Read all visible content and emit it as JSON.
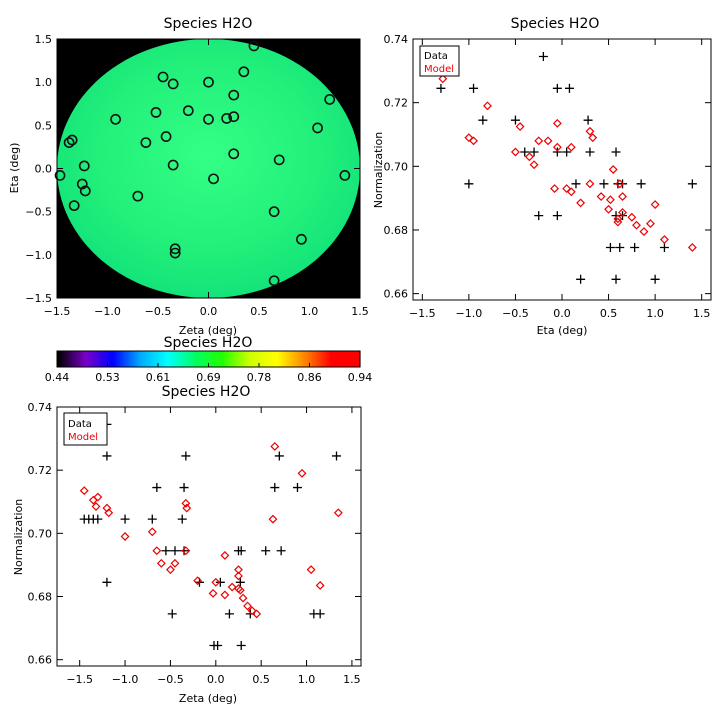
{
  "chart_data": [
    {
      "type": "scatter",
      "title": "Species H2O",
      "xlabel": "Zeta (deg)",
      "ylabel": "Eta (deg)",
      "xlim": [
        -1.5,
        1.5
      ],
      "ylim": [
        -1.5,
        1.5
      ],
      "xticks": [
        -1.5,
        -1.0,
        -0.5,
        0.0,
        0.5,
        1.0,
        1.5
      ],
      "yticks": [
        -1.5,
        -1.0,
        -0.5,
        0.0,
        0.5,
        1.0,
        1.5
      ],
      "tick_labels_x": [
        "−1.5",
        "−1.0",
        "−0.5",
        "0.0",
        "0.5",
        "1.0",
        "1.5"
      ],
      "tick_labels_y": [
        "−1.5",
        "−1.0",
        "−0.5",
        "0.0",
        "0.5",
        "1.0",
        "1.5"
      ],
      "background": "#000000",
      "field_fill": "#24f07e",
      "field_radius": 1.5,
      "points": [
        [
          0.45,
          1.42
        ],
        [
          -0.45,
          1.06
        ],
        [
          0.0,
          1.0
        ],
        [
          0.35,
          1.12
        ],
        [
          -0.35,
          0.98
        ],
        [
          0.25,
          0.85
        ],
        [
          1.2,
          0.8
        ],
        [
          -0.2,
          0.67
        ],
        [
          -0.52,
          0.65
        ],
        [
          -0.92,
          0.57
        ],
        [
          0.0,
          0.57
        ],
        [
          0.18,
          0.58
        ],
        [
          0.25,
          0.6
        ],
        [
          1.08,
          0.47
        ],
        [
          -1.35,
          0.33
        ],
        [
          -1.38,
          0.3
        ],
        [
          -0.42,
          0.37
        ],
        [
          -0.62,
          0.3
        ],
        [
          0.25,
          0.17
        ],
        [
          0.7,
          0.1
        ],
        [
          -0.35,
          0.04
        ],
        [
          -1.23,
          0.03
        ],
        [
          -1.47,
          -0.08
        ],
        [
          1.35,
          -0.08
        ],
        [
          0.05,
          -0.12
        ],
        [
          -1.25,
          -0.18
        ],
        [
          -1.22,
          -0.26
        ],
        [
          -0.7,
          -0.32
        ],
        [
          -1.33,
          -0.43
        ],
        [
          0.65,
          -0.5
        ],
        [
          0.92,
          -0.82
        ],
        [
          -0.33,
          -0.93
        ],
        [
          -0.33,
          -0.98
        ],
        [
          0.65,
          -1.3
        ]
      ],
      "colorbar": {
        "title": "Species H2O",
        "range": [
          0.44,
          0.94
        ],
        "tick_labels": [
          "0.44",
          "0.53",
          "0.61",
          "0.69",
          "0.78",
          "0.86",
          "0.94"
        ],
        "colors": [
          "#000000",
          "#7a00c8",
          "#0000ff",
          "#00aaff",
          "#00ffff",
          "#00ff66",
          "#22ff00",
          "#ccff00",
          "#ffff00",
          "#ff8800",
          "#ff0000",
          "#ff0000"
        ]
      }
    },
    {
      "type": "scatter",
      "title": "Species H2O",
      "xlabel": "Eta (deg)",
      "ylabel": "Normalization",
      "xlim": [
        -1.6,
        1.6
      ],
      "ylim": [
        0.658,
        0.74
      ],
      "xticks": [
        -1.5,
        -1.0,
        -0.5,
        0.0,
        0.5,
        1.0,
        1.5
      ],
      "yticks": [
        0.66,
        0.68,
        0.7,
        0.72,
        0.74
      ],
      "tick_labels_x": [
        "−1.5",
        "−1.0",
        "−0.5",
        "0.0",
        "0.5",
        "1.0",
        "1.5"
      ],
      "tick_labels_y": [
        "0.66",
        "0.68",
        "0.70",
        "0.72",
        "0.74"
      ],
      "legend": [
        "Data",
        "Model"
      ],
      "legend_colors": [
        "#000000",
        "#ee0000"
      ],
      "series": [
        {
          "name": "Data",
          "marker": "plus",
          "points": [
            [
              -1.3,
              0.7245
            ],
            [
              -0.95,
              0.7245
            ],
            [
              -0.85,
              0.7145
            ],
            [
              -1.0,
              0.6945
            ],
            [
              -0.2,
              0.7345
            ],
            [
              -0.05,
              0.7245
            ],
            [
              0.08,
              0.7245
            ],
            [
              -0.5,
              0.7145
            ],
            [
              0.28,
              0.7145
            ],
            [
              -0.4,
              0.7045
            ],
            [
              -0.3,
              0.7045
            ],
            [
              0.05,
              0.7045
            ],
            [
              -0.05,
              0.7045
            ],
            [
              0.3,
              0.7045
            ],
            [
              0.58,
              0.7045
            ],
            [
              -0.25,
              0.6845
            ],
            [
              -0.05,
              0.6845
            ],
            [
              0.15,
              0.6945
            ],
            [
              0.45,
              0.6945
            ],
            [
              0.6,
              0.6945
            ],
            [
              0.65,
              0.6945
            ],
            [
              0.85,
              0.6945
            ],
            [
              1.4,
              0.6945
            ],
            [
              0.58,
              0.6845
            ],
            [
              0.65,
              0.6845
            ],
            [
              0.52,
              0.6745
            ],
            [
              0.62,
              0.6745
            ],
            [
              0.78,
              0.6745
            ],
            [
              1.1,
              0.6745
            ],
            [
              0.2,
              0.6645
            ],
            [
              0.58,
              0.6645
            ],
            [
              1.0,
              0.6645
            ]
          ]
        },
        {
          "name": "Model",
          "marker": "diamond",
          "points": [
            [
              -1.28,
              0.7275
            ],
            [
              -0.8,
              0.719
            ],
            [
              -1.0,
              0.709
            ],
            [
              -0.95,
              0.708
            ],
            [
              -0.45,
              0.7125
            ],
            [
              -0.05,
              0.7135
            ],
            [
              -0.25,
              0.708
            ],
            [
              -0.15,
              0.708
            ],
            [
              -0.05,
              0.706
            ],
            [
              0.1,
              0.706
            ],
            [
              0.3,
              0.711
            ],
            [
              0.33,
              0.709
            ],
            [
              -0.5,
              0.7045
            ],
            [
              -0.35,
              0.703
            ],
            [
              -0.3,
              0.7005
            ],
            [
              0.55,
              0.699
            ],
            [
              -0.08,
              0.693
            ],
            [
              0.05,
              0.693
            ],
            [
              0.1,
              0.692
            ],
            [
              0.3,
              0.6945
            ],
            [
              0.62,
              0.6945
            ],
            [
              0.42,
              0.6905
            ],
            [
              0.52,
              0.6895
            ],
            [
              0.65,
              0.6905
            ],
            [
              0.2,
              0.6885
            ],
            [
              0.5,
              0.6865
            ],
            [
              0.6,
              0.6835
            ],
            [
              0.6,
              0.6825
            ],
            [
              0.65,
              0.6855
            ],
            [
              0.75,
              0.684
            ],
            [
              0.8,
              0.6815
            ],
            [
              0.95,
              0.682
            ],
            [
              1.0,
              0.688
            ],
            [
              0.88,
              0.6795
            ],
            [
              1.1,
              0.677
            ],
            [
              1.4,
              0.6745
            ]
          ]
        }
      ]
    },
    {
      "type": "scatter",
      "title": "Species H2O",
      "xlabel": "Zeta (deg)",
      "ylabel": "Normalization",
      "xlim": [
        -1.75,
        1.6
      ],
      "ylim": [
        0.658,
        0.74
      ],
      "xticks": [
        -1.5,
        -1.0,
        -0.5,
        0.0,
        0.5,
        1.0,
        1.5
      ],
      "yticks": [
        0.66,
        0.68,
        0.7,
        0.72,
        0.74
      ],
      "tick_labels_x": [
        "−1.5",
        "−1.0",
        "−0.5",
        "0.0",
        "0.5",
        "1.0",
        "1.5"
      ],
      "tick_labels_y": [
        "0.66",
        "0.68",
        "0.70",
        "0.72",
        "0.74"
      ],
      "legend": [
        "Data",
        "Model"
      ],
      "legend_colors": [
        "#000000",
        "#ee0000"
      ],
      "series": [
        {
          "name": "Data",
          "marker": "plus",
          "points": [
            [
              -1.2,
              0.7345
            ],
            [
              -1.2,
              0.7245
            ],
            [
              -0.33,
              0.7245
            ],
            [
              0.7,
              0.7245
            ],
            [
              1.33,
              0.7245
            ],
            [
              -0.65,
              0.7145
            ],
            [
              -0.35,
              0.7145
            ],
            [
              0.65,
              0.7145
            ],
            [
              0.9,
              0.7145
            ],
            [
              -1.45,
              0.7045
            ],
            [
              -1.4,
              0.7045
            ],
            [
              -1.35,
              0.7045
            ],
            [
              -1.3,
              0.7045
            ],
            [
              -1.0,
              0.7045
            ],
            [
              -0.7,
              0.7045
            ],
            [
              -0.37,
              0.7045
            ],
            [
              -0.55,
              0.6945
            ],
            [
              -0.45,
              0.6945
            ],
            [
              -0.35,
              0.6945
            ],
            [
              0.25,
              0.6945
            ],
            [
              0.28,
              0.6945
            ],
            [
              0.55,
              0.6945
            ],
            [
              0.72,
              0.6945
            ],
            [
              -1.2,
              0.6845
            ],
            [
              -0.18,
              0.6845
            ],
            [
              0.05,
              0.6845
            ],
            [
              0.27,
              0.6845
            ],
            [
              -0.48,
              0.6745
            ],
            [
              0.15,
              0.6745
            ],
            [
              0.38,
              0.6745
            ],
            [
              1.08,
              0.6745
            ],
            [
              1.15,
              0.6745
            ],
            [
              -0.02,
              0.6645
            ],
            [
              0.02,
              0.6645
            ],
            [
              0.28,
              0.6645
            ]
          ]
        },
        {
          "name": "Model",
          "marker": "diamond",
          "points": [
            [
              0.65,
              0.7275
            ],
            [
              0.95,
              0.719
            ],
            [
              -1.45,
              0.7135
            ],
            [
              -1.35,
              0.7105
            ],
            [
              -1.3,
              0.7115
            ],
            [
              -1.32,
              0.7085
            ],
            [
              -1.2,
              0.708
            ],
            [
              -1.18,
              0.7065
            ],
            [
              -0.33,
              0.7095
            ],
            [
              -0.32,
              0.708
            ],
            [
              0.63,
              0.7045
            ],
            [
              1.35,
              0.7065
            ],
            [
              -1.0,
              0.699
            ],
            [
              -0.7,
              0.7005
            ],
            [
              -0.65,
              0.6945
            ],
            [
              -0.33,
              0.6945
            ],
            [
              0.1,
              0.693
            ],
            [
              -0.6,
              0.6905
            ],
            [
              -0.5,
              0.6885
            ],
            [
              -0.45,
              0.6905
            ],
            [
              0.25,
              0.6885
            ],
            [
              0.25,
              0.6865
            ],
            [
              1.05,
              0.6885
            ],
            [
              1.15,
              0.6835
            ],
            [
              -0.2,
              0.685
            ],
            [
              0.0,
              0.6845
            ],
            [
              0.18,
              0.683
            ],
            [
              0.25,
              0.6825
            ],
            [
              0.27,
              0.682
            ],
            [
              0.1,
              0.6805
            ],
            [
              -0.03,
              0.681
            ],
            [
              0.3,
              0.6795
            ],
            [
              0.35,
              0.677
            ],
            [
              0.4,
              0.6755
            ],
            [
              0.45,
              0.6745
            ]
          ]
        }
      ]
    }
  ]
}
